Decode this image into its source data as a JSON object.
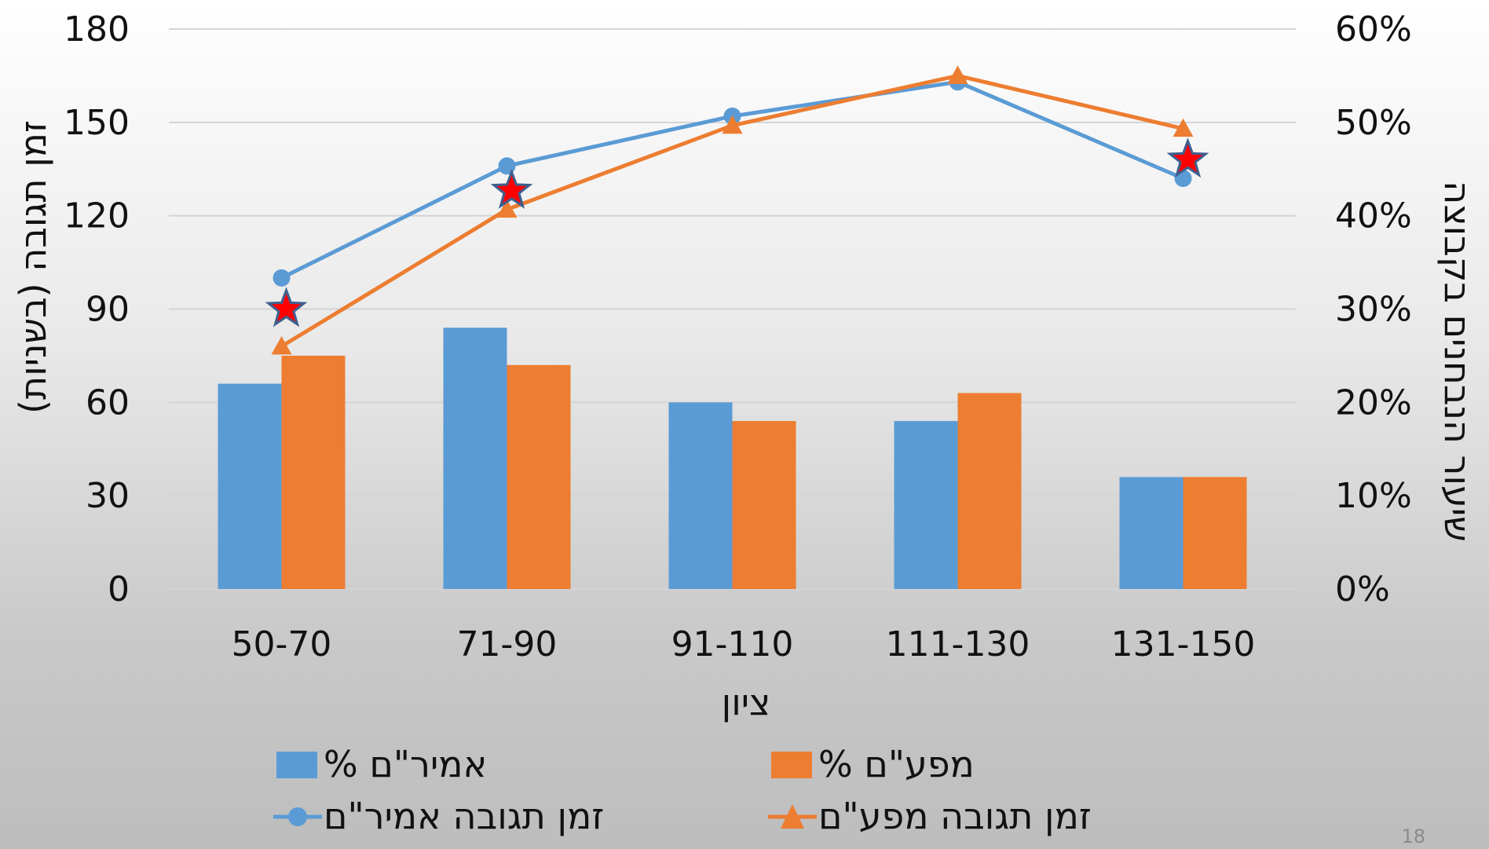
{
  "page_number": "18",
  "chart_data": {
    "type": "bar",
    "categories": [
      "50-70",
      "71-90",
      "91-110",
      "111-130",
      "131-150"
    ],
    "xlabel": "ציון",
    "ylabel_left": "זמן תגובה (בשניות)",
    "ylabel_right": "שיעור הנבחנים בקבוצה",
    "left_axis": {
      "min": 0,
      "max": 180,
      "ticks": [
        "0",
        "30",
        "60",
        "90",
        "120",
        "150",
        "180"
      ]
    },
    "right_axis": {
      "min": 0,
      "max": 0.6,
      "ticks": [
        "0%",
        "10%",
        "20%",
        "30%",
        "40%",
        "50%",
        "60%"
      ]
    },
    "grid": true,
    "legend_position": "bottom",
    "series": [
      {
        "name": "% אמיר\"ם",
        "kind": "bar",
        "axis": "right",
        "color": "#5B9BD5",
        "values": [
          0.22,
          0.28,
          0.2,
          0.18,
          0.12
        ]
      },
      {
        "name": "% מפע\"ם",
        "kind": "bar",
        "axis": "right",
        "color": "#ED7D31",
        "values": [
          0.25,
          0.24,
          0.18,
          0.21,
          0.12
        ]
      },
      {
        "name": "זמן תגובה אמיר\"ם",
        "kind": "line",
        "marker": "circle",
        "axis": "left",
        "color": "#5B9BD5",
        "values": [
          100,
          136,
          152,
          163,
          132
        ]
      },
      {
        "name": "זמן תגובה מפע\"ם",
        "kind": "line",
        "marker": "triangle",
        "axis": "left",
        "color": "#ED7D31",
        "values": [
          78,
          122,
          149,
          165,
          148
        ]
      }
    ],
    "annotations": {
      "type": "star-markers",
      "color": "#FF0000",
      "points": [
        {
          "category": "50-70",
          "value": 90
        },
        {
          "category": "71-90",
          "value": 128
        },
        {
          "category": "131-150",
          "value": 138
        }
      ]
    }
  }
}
